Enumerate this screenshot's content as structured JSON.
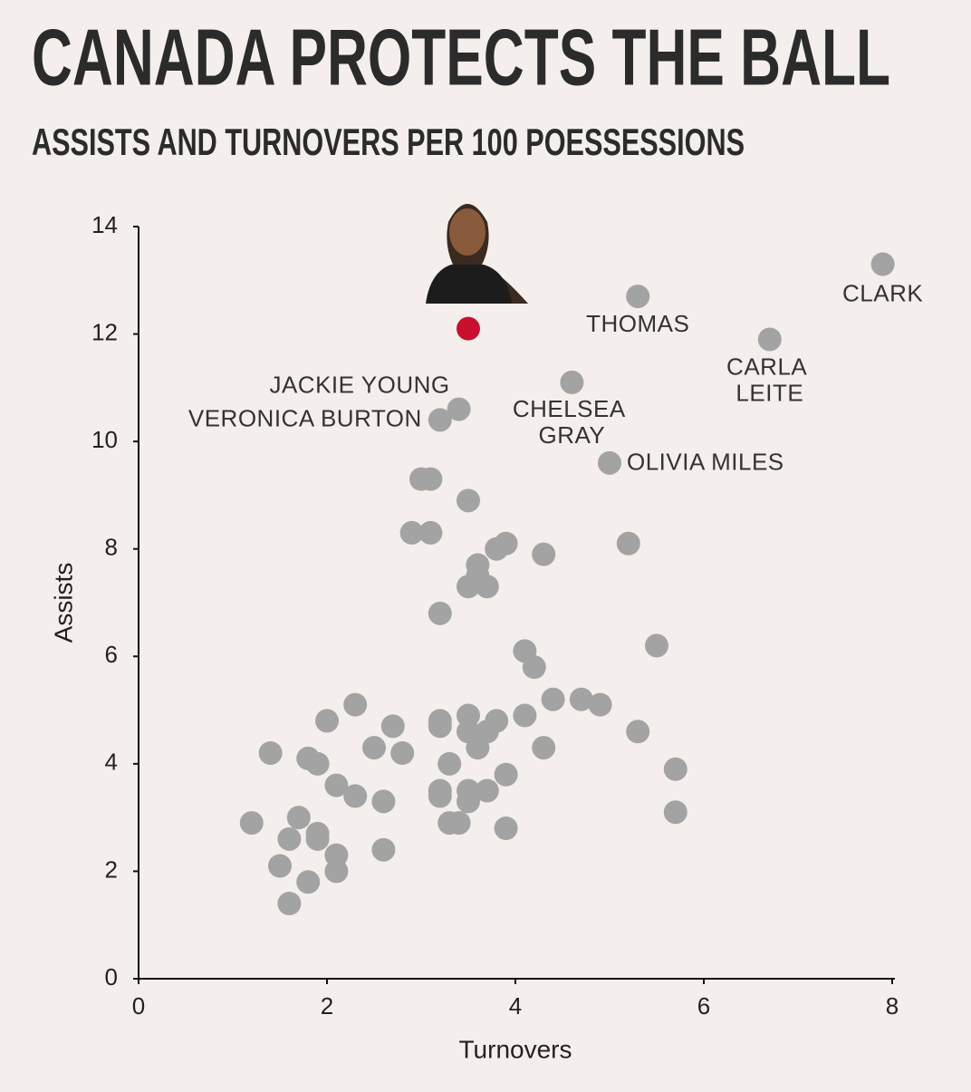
{
  "chart_data": {
    "type": "scatter",
    "title": "CANADA PROTECTS THE BALL",
    "subtitle": "ASSISTS AND TURNOVERS PER 100 POESSESSIONS",
    "xlabel": "Turnovers",
    "ylabel": "Assists",
    "xlim": [
      0,
      8
    ],
    "ylim": [
      0,
      14
    ],
    "xticks": [
      0,
      2,
      4,
      6,
      8
    ],
    "yticks": [
      0,
      2,
      4,
      6,
      8,
      10,
      12,
      14
    ],
    "series": [
      {
        "color": "#a3a3a3",
        "x": [
          7.9,
          5.3,
          6.7,
          4.6,
          3.4,
          3.2,
          5.0,
          3.0,
          3.1,
          3.5,
          2.9,
          3.1,
          3.8,
          3.9,
          4.3,
          5.2,
          3.6,
          3.6,
          3.5,
          3.7,
          3.2,
          5.5,
          4.1,
          4.2,
          2.3,
          4.4,
          4.7,
          4.9,
          2.0,
          2.7,
          3.2,
          3.2,
          3.5,
          3.5,
          3.8,
          3.7,
          4.1,
          3.6,
          5.3,
          1.4,
          1.8,
          1.9,
          2.5,
          2.8,
          3.3,
          4.3,
          5.7,
          2.1,
          2.3,
          2.6,
          3.2,
          3.2,
          3.5,
          3.5,
          3.7,
          3.9,
          1.2,
          1.7,
          1.9,
          1.9,
          1.6,
          3.3,
          3.4,
          3.9,
          5.7,
          2.1,
          2.1,
          1.5,
          2.6,
          1.8,
          1.6
        ],
        "y": [
          13.3,
          12.7,
          11.9,
          11.1,
          10.6,
          10.4,
          9.6,
          9.3,
          9.3,
          8.9,
          8.3,
          8.3,
          8.0,
          8.1,
          7.9,
          8.1,
          7.7,
          7.5,
          7.3,
          7.3,
          6.8,
          6.2,
          6.1,
          5.8,
          5.1,
          5.2,
          5.2,
          5.1,
          4.8,
          4.7,
          4.8,
          4.7,
          4.9,
          4.6,
          4.8,
          4.6,
          4.9,
          4.3,
          4.6,
          4.2,
          4.1,
          4.0,
          4.3,
          4.2,
          4.0,
          4.3,
          3.9,
          3.6,
          3.4,
          3.3,
          3.5,
          3.4,
          3.5,
          3.3,
          3.5,
          3.8,
          2.9,
          3.0,
          2.7,
          2.6,
          2.6,
          2.9,
          2.9,
          2.8,
          3.1,
          2.3,
          2.0,
          2.1,
          2.4,
          1.8,
          1.4
        ],
        "labels": [
          "CLARK",
          "THOMAS",
          "CARLA LEITE",
          "CHELSEA GRAY",
          "JACKIE YOUNG",
          "VERONICA BURTON",
          "OLIVIA MILES",
          null,
          null,
          null,
          null,
          null,
          null,
          null,
          null,
          null,
          null,
          null,
          null,
          null,
          null,
          null,
          null,
          null,
          null,
          null,
          null,
          null,
          null,
          null,
          null,
          null,
          null,
          null,
          null,
          null,
          null,
          null,
          null,
          null,
          null,
          null,
          null,
          null,
          null,
          null,
          null,
          null,
          null,
          null,
          null,
          null,
          null,
          null,
          null,
          null,
          null,
          null,
          null,
          null,
          null,
          null,
          null,
          null,
          null,
          null,
          null,
          null,
          null,
          null,
          null
        ]
      },
      {
        "color": "#c8102e",
        "x": [
          3.5
        ],
        "y": [
          12.1
        ]
      }
    ]
  }
}
